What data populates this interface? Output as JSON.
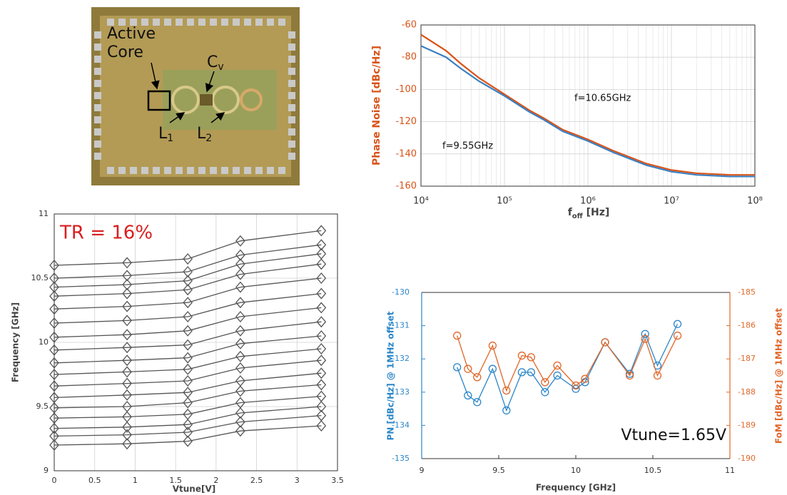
{
  "die_photo": {
    "core_label": [
      "Active",
      "Core"
    ],
    "cv_label": [
      "C",
      "v"
    ],
    "l1_label": [
      "L",
      "1"
    ],
    "l2_label": [
      "L",
      "2"
    ]
  },
  "chart_data": [
    {
      "type": "line",
      "ylabel": "Phase Noise [dBc/Hz]",
      "xlabel": [
        "f",
        "off",
        " [Hz]"
      ],
      "xscale": "log",
      "xlim": [
        10000,
        100000000
      ],
      "xticks": [
        {
          "value": 10000,
          "label": "10⁴"
        },
        {
          "value": 100000,
          "label": "10⁵"
        },
        {
          "value": 1000000,
          "label": "10⁶"
        },
        {
          "value": 10000000,
          "label": "10⁷"
        },
        {
          "value": 100000000,
          "label": "10⁸"
        }
      ],
      "ylim": [
        -160,
        -60
      ],
      "yticks": [
        -160,
        -140,
        -120,
        -100,
        -80,
        -60
      ],
      "grid": true,
      "series": [
        {
          "name": "f=10.65GHz",
          "color": "#d95319",
          "x": [
            10000,
            20000,
            30000,
            50000,
            100000,
            200000,
            300000,
            500000,
            1000000,
            2000000,
            5000000,
            10000000,
            20000000,
            50000000,
            100000000
          ],
          "values": [
            -66,
            -76,
            -84,
            -93,
            -103,
            -113,
            -118,
            -125,
            -131,
            -138,
            -146,
            -150,
            -152,
            -153,
            -153
          ]
        },
        {
          "name": "f=9.55GHz",
          "color": "#3a7fc1",
          "x": [
            10000,
            20000,
            30000,
            50000,
            100000,
            200000,
            300000,
            500000,
            1000000,
            2000000,
            5000000,
            10000000,
            20000000,
            50000000,
            100000000
          ],
          "values": [
            -73,
            -80,
            -87,
            -95,
            -104,
            -114,
            -119,
            -126,
            -132,
            -139,
            -147,
            -151,
            -153,
            -154,
            -154
          ]
        }
      ]
    },
    {
      "type": "line",
      "marker": "diamond",
      "color": "#555555",
      "xlabel": "Vtune[V]",
      "ylabel": "Frequency [GHz]",
      "annotation": "TR = 16%",
      "x": [
        0,
        0.9,
        1.65,
        2.3,
        3.3
      ],
      "xlim": [
        0,
        3.5
      ],
      "xticks": [
        0,
        0.5,
        1,
        1.5,
        2,
        2.5,
        3,
        3.5
      ],
      "ylim": [
        9,
        11
      ],
      "yticks": [
        9,
        9.5,
        10,
        10.5,
        11
      ],
      "grid": true,
      "series": [
        {
          "values": [
            9.2,
            9.21,
            9.23,
            9.31,
            9.35
          ]
        },
        {
          "values": [
            9.27,
            9.28,
            9.3,
            9.38,
            9.43
          ]
        },
        {
          "values": [
            9.33,
            9.34,
            9.36,
            9.45,
            9.5
          ]
        },
        {
          "values": [
            9.41,
            9.42,
            9.44,
            9.53,
            9.58
          ]
        },
        {
          "values": [
            9.49,
            9.5,
            9.53,
            9.62,
            9.67
          ]
        },
        {
          "values": [
            9.57,
            9.59,
            9.61,
            9.7,
            9.76
          ]
        },
        {
          "values": [
            9.66,
            9.68,
            9.7,
            9.8,
            9.86
          ]
        },
        {
          "values": [
            9.75,
            9.77,
            9.79,
            9.89,
            9.95
          ]
        },
        {
          "values": [
            9.84,
            9.86,
            9.88,
            9.99,
            10.05
          ]
        },
        {
          "values": [
            9.94,
            9.96,
            9.98,
            10.09,
            10.16
          ]
        },
        {
          "values": [
            10.04,
            10.06,
            10.09,
            10.2,
            10.27
          ]
        },
        {
          "values": [
            10.15,
            10.17,
            10.2,
            10.31,
            10.38
          ]
        },
        {
          "values": [
            10.26,
            10.28,
            10.31,
            10.43,
            10.5
          ]
        },
        {
          "values": [
            10.36,
            10.38,
            10.41,
            10.53,
            10.61
          ]
        },
        {
          "values": [
            10.43,
            10.45,
            10.48,
            10.61,
            10.69
          ]
        },
        {
          "values": [
            10.5,
            10.52,
            10.55,
            10.68,
            10.76
          ]
        },
        {
          "values": [
            10.6,
            10.62,
            10.65,
            10.79,
            10.87
          ]
        }
      ]
    },
    {
      "type": "line",
      "marker": "circle",
      "xlabel": "Frequency [GHz]",
      "ylabel": "PN [dBc/Hz] @ 1MHz offset",
      "y2label": "FoM [dBc/Hz] @ 1MHz offset",
      "annotation": "Vtune=1.65V",
      "x": [
        9.23,
        9.3,
        9.36,
        9.46,
        9.55,
        9.65,
        9.71,
        9.8,
        9.88,
        10.0,
        10.06,
        10.19,
        10.35,
        10.45,
        10.53,
        10.66
      ],
      "xlim": [
        9,
        11
      ],
      "xticks": [
        9,
        9.5,
        10,
        10.5,
        11
      ],
      "ylim": [
        -135,
        -130
      ],
      "yticks": [
        -135,
        -134,
        -133,
        -132,
        -131,
        -130
      ],
      "y2lim": [
        -190,
        -185
      ],
      "y2ticks": [
        -190,
        -189,
        -188,
        -187,
        -186,
        -185
      ],
      "series": [
        {
          "color": "#2a86c9",
          "values": [
            -132.25,
            -133.1,
            -133.3,
            -132.3,
            -133.55,
            -132.4,
            -132.4,
            -133.0,
            -132.5,
            -132.9,
            -132.7,
            -131.5,
            -132.45,
            -131.25,
            -132.2,
            -130.95
          ]
        },
        {
          "color": "#e0672a",
          "axis": "y2",
          "values": [
            -186.3,
            -187.3,
            -187.55,
            -186.6,
            -187.95,
            -186.9,
            -186.95,
            -187.7,
            -187.2,
            -187.8,
            -187.6,
            -186.5,
            -187.5,
            -186.4,
            -187.5,
            -186.3
          ]
        }
      ]
    }
  ]
}
